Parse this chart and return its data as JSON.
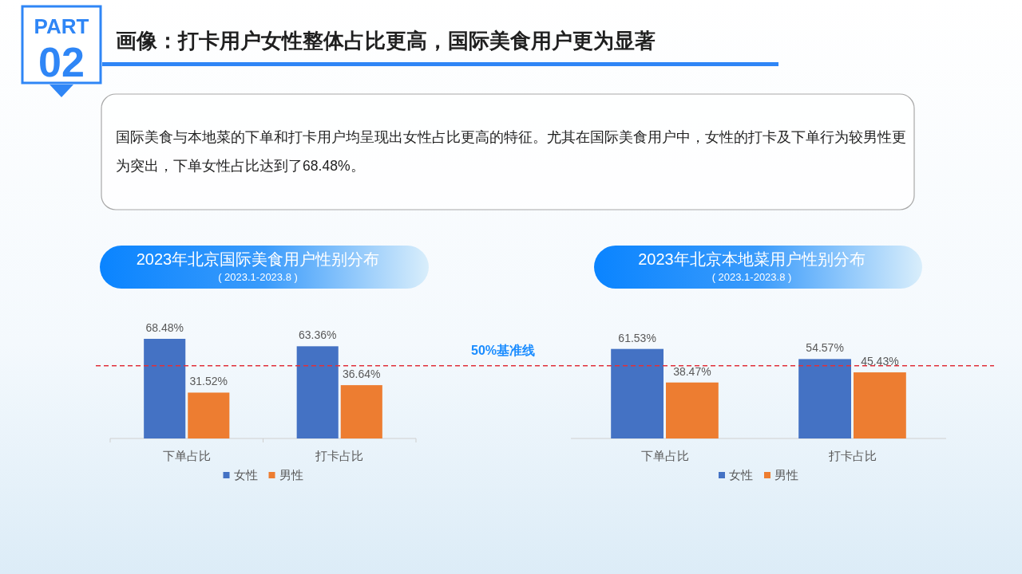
{
  "chart_data": [
    {
      "type": "other",
      "title": "画像：打卡用户女性整体占比更高，国际美食用户更为显著",
      "annotations": [
        "PART",
        "02",
        "国际美食与本地菜的下单和打卡用户均呈现出女性占比更高的特征。尤其在国际美食用户中，女性的打卡及下单行为较男性更为突出，下单女性占比达到了68.48%。"
      ]
    },
    {
      "type": "bar",
      "title": "2023年北京国际美食用户性别分布",
      "subtitle": "( 2023.1-2023.8 )",
      "categories": [
        "下单占比",
        "打卡占比"
      ],
      "series": [
        {
          "name": "女性",
          "color": "#4472c4",
          "values": [
            68.48,
            63.36
          ],
          "value_labels": [
            "68.48%",
            "63.36%"
          ]
        },
        {
          "name": "男性",
          "color": "#ed7d31",
          "values": [
            31.52,
            36.64
          ],
          "value_labels": [
            "31.52%",
            "36.64%"
          ]
        }
      ],
      "tick_labels": "x",
      "legend": "bottom",
      "ref_lines": [
        {
          "axis": "y",
          "value": 50,
          "label": "50%基准线",
          "color": "#e0303a",
          "line_style": "dashed"
        }
      ]
    },
    {
      "type": "bar",
      "title": "2023年北京本地菜用户性别分布",
      "subtitle": "( 2023.1-2023.8 )",
      "categories": [
        "下单占比",
        "打卡占比"
      ],
      "series": [
        {
          "name": "女性",
          "color": "#4472c4",
          "values": [
            61.53,
            54.57
          ],
          "value_labels": [
            "61.53%",
            "54.57%"
          ]
        },
        {
          "name": "男性",
          "color": "#ed7d31",
          "values": [
            38.47,
            45.43
          ],
          "value_labels": [
            "38.47%",
            "45.43%"
          ]
        }
      ],
      "tick_labels": "x",
      "legend": "bottom",
      "ref_lines": [
        {
          "axis": "y",
          "value": 50,
          "color": "#e0303a",
          "line_style": "dashed"
        }
      ]
    }
  ]
}
